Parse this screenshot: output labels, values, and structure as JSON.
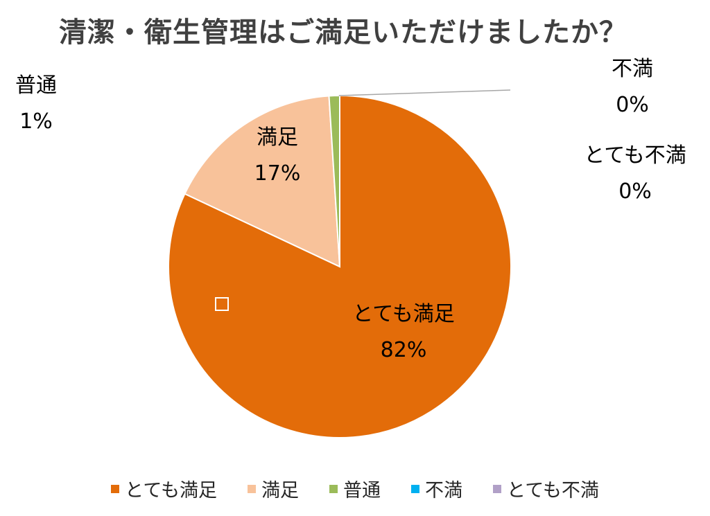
{
  "chart_data": {
    "type": "pie",
    "title": "清潔・衛生管理はご満足いただけましたか？",
    "categories": [
      "とても満足",
      "満足",
      "普通",
      "不満",
      "とても不満"
    ],
    "values": [
      82,
      17,
      1,
      0,
      0
    ],
    "value_labels": [
      "82%",
      "17%",
      "1%",
      "0%",
      "0%"
    ],
    "colors": [
      "#E36C09",
      "#F8C29A",
      "#9BBB59",
      "#00B0F0",
      "#B1A0C7"
    ],
    "legend_position": "bottom"
  }
}
